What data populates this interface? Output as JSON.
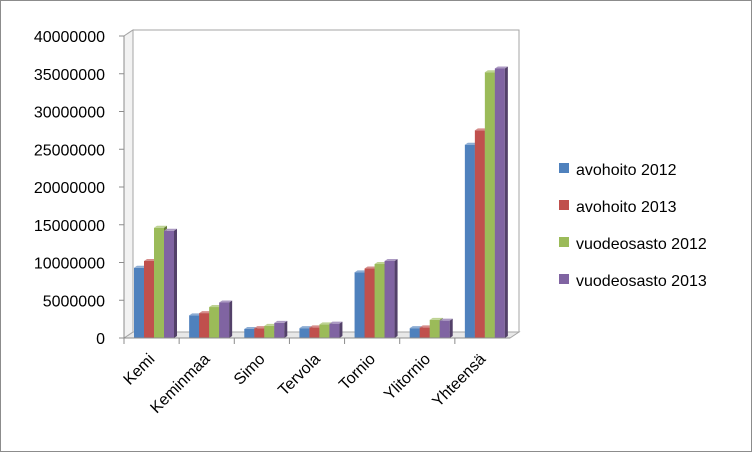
{
  "chart_data": {
    "type": "bar",
    "categories": [
      "Kemi",
      "Keminmaa",
      "Simo",
      "Tervola",
      "Tornio",
      "Ylitornio",
      "Yhteensä"
    ],
    "series": [
      {
        "name": "avohoito 2012",
        "color": "#4f81bd",
        "values": [
          9300000,
          3000000,
          1200000,
          1300000,
          8700000,
          1300000,
          25600000
        ]
      },
      {
        "name": "avohoito 2013",
        "color": "#c0504d",
        "values": [
          10200000,
          3300000,
          1300000,
          1400000,
          9200000,
          1400000,
          27500000
        ]
      },
      {
        "name": "vuodeosasto 2012",
        "color": "#9bbb59",
        "values": [
          14600000,
          4100000,
          1600000,
          1800000,
          9800000,
          2400000,
          35200000
        ]
      },
      {
        "name": "vuodeosasto 2013",
        "color": "#8064a2",
        "values": [
          14200000,
          4700000,
          2000000,
          1900000,
          10200000,
          2300000,
          35700000
        ]
      }
    ],
    "ylim": [
      0,
      40000000
    ],
    "yticks": [
      "0",
      "5000000",
      "10000000",
      "15000000",
      "20000000",
      "25000000",
      "30000000",
      "35000000",
      "40000000"
    ],
    "grid": true,
    "legend": "right",
    "title": "",
    "xlabel": "",
    "ylabel": ""
  }
}
